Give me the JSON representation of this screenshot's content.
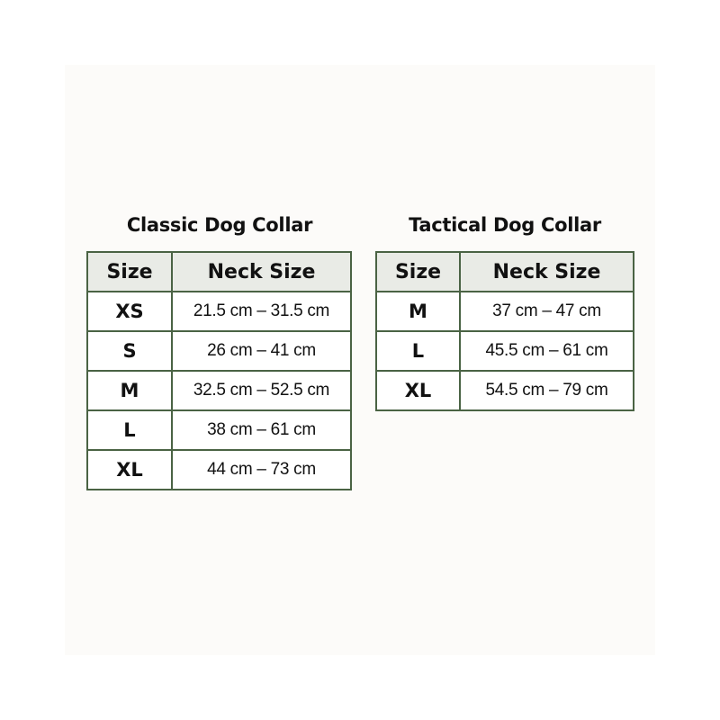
{
  "tables": [
    {
      "title": "Classic Dog Collar",
      "headers": [
        "Size",
        "Neck Size"
      ],
      "rows": [
        {
          "size": "XS",
          "neck": "21.5 cm – 31.5 cm"
        },
        {
          "size": "S",
          "neck": "26 cm – 41 cm"
        },
        {
          "size": "M",
          "neck": "32.5 cm – 52.5 cm"
        },
        {
          "size": "L",
          "neck": "38 cm – 61 cm"
        },
        {
          "size": "XL",
          "neck": "44 cm – 73 cm"
        }
      ]
    },
    {
      "title": "Tactical Dog Collar",
      "headers": [
        "Size",
        "Neck Size"
      ],
      "rows": [
        {
          "size": "M",
          "neck": "37 cm – 47 cm"
        },
        {
          "size": "L",
          "neck": "45.5 cm – 61 cm"
        },
        {
          "size": "XL",
          "neck": "54.5 cm – 79 cm"
        }
      ]
    }
  ],
  "colors": {
    "border": "#4a6344",
    "header_bg": "#e9ebe6",
    "panel_bg": "#fcfbf9"
  }
}
